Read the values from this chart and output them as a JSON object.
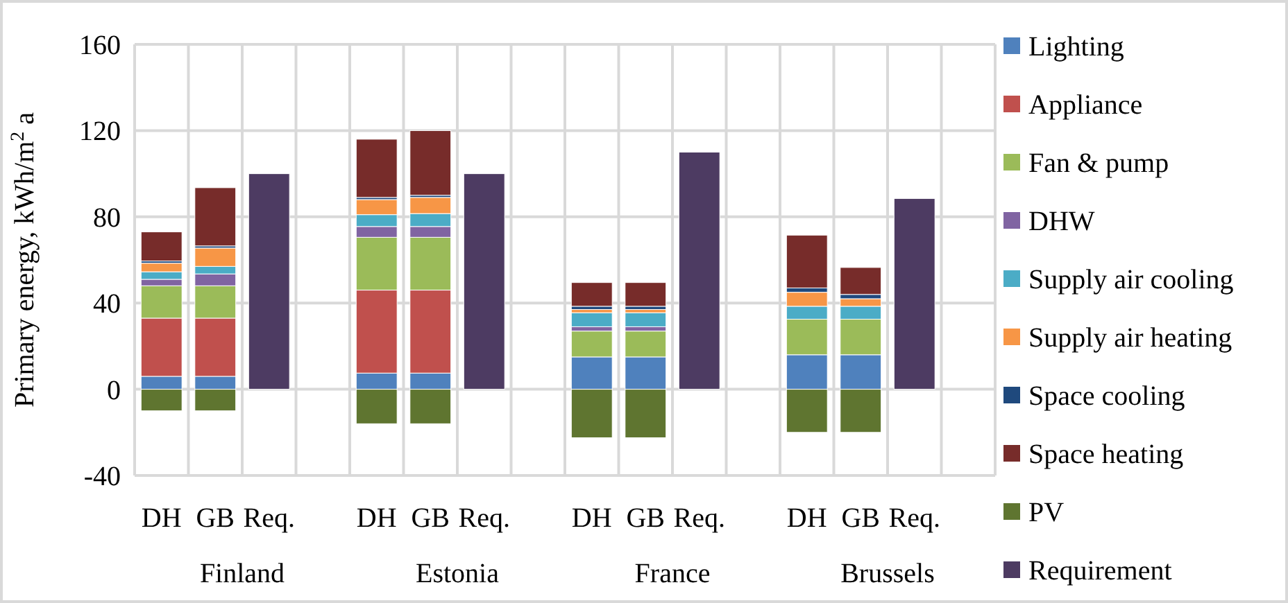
{
  "chart_data": {
    "type": "bar",
    "stacked": true,
    "ylabel": "Primary energy, kWh/m$^{2}$ a",
    "categories": [
      "DH",
      "GB",
      "Req.",
      null,
      "DH",
      "GB",
      "Req.",
      null,
      "DH",
      "GB",
      "Req.",
      null,
      "DH",
      "GB",
      "Req.",
      null
    ],
    "annotations": [
      "Finland",
      "Estonia",
      "France",
      "Brussels"
    ],
    "ylim": [
      -40,
      160
    ],
    "yticks": [
      -40,
      0,
      40,
      80,
      120,
      160
    ],
    "grid": true,
    "legend": "right",
    "series": [
      {
        "name": "Lighting",
        "color": "#4f81bd",
        "values": [
          6,
          6,
          null,
          null,
          7.5,
          7.5,
          null,
          null,
          15,
          15,
          null,
          null,
          16,
          16,
          null,
          null
        ]
      },
      {
        "name": "Appliance",
        "color": "#c0504d",
        "values": [
          27,
          27,
          null,
          null,
          38.5,
          38.5,
          null,
          null,
          null,
          null,
          null,
          null,
          null,
          null,
          null,
          null
        ]
      },
      {
        "name": "Fan & pump",
        "color": "#9bbb59",
        "values": [
          15,
          15,
          null,
          null,
          24.5,
          24.5,
          null,
          null,
          12,
          12,
          null,
          null,
          16.5,
          16.5,
          null,
          null
        ]
      },
      {
        "name": "DHW",
        "color": "#8064a2",
        "values": [
          3,
          5.5,
          null,
          null,
          5,
          5,
          null,
          null,
          2,
          2,
          null,
          null,
          null,
          null,
          null,
          null
        ]
      },
      {
        "name": "Supply air cooling",
        "color": "#4bacc6",
        "values": [
          3.5,
          3.5,
          null,
          null,
          5.5,
          6,
          null,
          null,
          6.5,
          6.5,
          null,
          null,
          6,
          6,
          null,
          null
        ]
      },
      {
        "name": "Supply air heating",
        "color": "#f79646",
        "values": [
          4,
          8.5,
          null,
          null,
          7,
          7.5,
          null,
          null,
          1.5,
          1.5,
          null,
          null,
          6.5,
          3.5,
          null,
          null
        ]
      },
      {
        "name": "Space cooling",
        "color": "#1f497d",
        "values": [
          1,
          1,
          null,
          null,
          1,
          1,
          null,
          null,
          1.5,
          1.5,
          null,
          null,
          2,
          2,
          null,
          null
        ]
      },
      {
        "name": "Space heating",
        "color": "#772c2a",
        "values": [
          13.5,
          27,
          null,
          null,
          27,
          30,
          null,
          null,
          11,
          11,
          null,
          null,
          24.5,
          12.5,
          null,
          null
        ]
      },
      {
        "name": "PV",
        "color": "#5f7530",
        "values": [
          -10,
          -10,
          null,
          null,
          -16,
          -16,
          null,
          null,
          -22.5,
          -22.5,
          null,
          null,
          -20,
          -20,
          null,
          null
        ]
      },
      {
        "name": "Requirement",
        "color": "#4d3b62",
        "values": [
          null,
          null,
          100,
          null,
          null,
          null,
          100,
          null,
          null,
          null,
          110,
          null,
          null,
          null,
          88.5,
          null
        ]
      }
    ]
  }
}
